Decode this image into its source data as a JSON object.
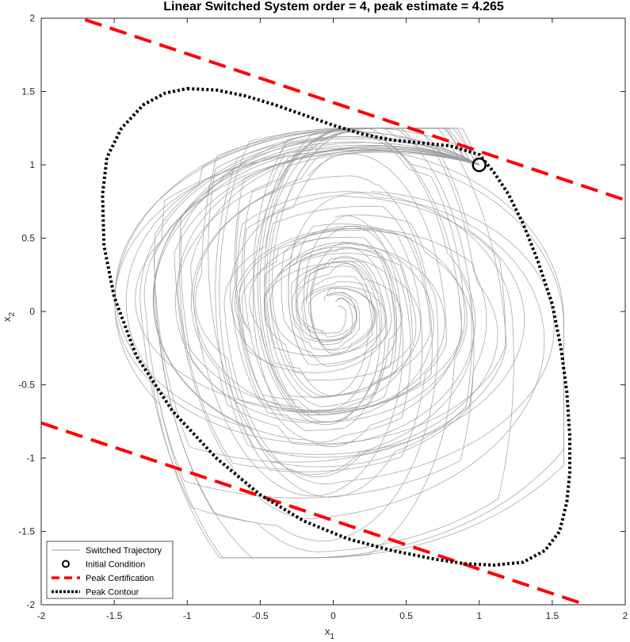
{
  "chart_data": {
    "type": "line",
    "title": "Linear Switched System order = 4, peak estimate = 4.265",
    "xlabel": "x",
    "xlabel_sub": "1",
    "ylabel": "x",
    "ylabel_sub": "2",
    "xlim": [
      -2,
      2
    ],
    "ylim": [
      -2,
      2
    ],
    "xticks": [
      -2,
      -1.5,
      -1,
      -0.5,
      0,
      0.5,
      1,
      1.5,
      2
    ],
    "xtick_labels": [
      "-2",
      "-1.5",
      "-1",
      "-0.5",
      "0",
      "0.5",
      "1",
      "1.5",
      "2"
    ],
    "yticks": [
      -2,
      -1.5,
      -1,
      -0.5,
      0,
      0.5,
      1,
      1.5,
      2
    ],
    "ytick_labels": [
      "-2",
      "-1.5",
      "-1",
      "-0.5",
      "0",
      "0.5",
      "1",
      "1.5",
      "2"
    ],
    "grid": false,
    "legend_position": "bottom-left",
    "colors": {
      "trajectory": "#9b9b9b",
      "initial": "#000000",
      "certification": "#ff0000",
      "contour": "#000000"
    },
    "initial_condition": {
      "x": 1,
      "y": 1
    },
    "certification_lines": [
      {
        "x": [
          -1.7,
          2.0
        ],
        "y": [
          1.99,
          0.76
        ]
      },
      {
        "x": [
          -2.0,
          1.7
        ],
        "y": [
          -0.76,
          -1.99
        ]
      }
    ],
    "peak_contour": {
      "x": [
        -1.0,
        -0.8,
        -0.6,
        -0.4,
        -0.2,
        0.0,
        0.2,
        0.4,
        0.6,
        0.8,
        1.0,
        1.1,
        1.2,
        1.3,
        1.4,
        1.5,
        1.56,
        1.6,
        1.62,
        1.62,
        1.6,
        1.55,
        1.45,
        1.3,
        1.1,
        0.9,
        0.7,
        0.4,
        0.1,
        -0.2,
        -0.5,
        -0.8,
        -1.1,
        -1.35,
        -1.5,
        -1.57,
        -1.58,
        -1.55,
        -1.45,
        -1.3,
        -1.15,
        -1.0
      ],
      "y": [
        1.52,
        1.51,
        1.47,
        1.41,
        1.34,
        1.27,
        1.21,
        1.17,
        1.15,
        1.13,
        1.07,
        0.95,
        0.8,
        0.6,
        0.35,
        0.05,
        -0.25,
        -0.55,
        -0.85,
        -1.1,
        -1.3,
        -1.5,
        -1.63,
        -1.71,
        -1.73,
        -1.72,
        -1.69,
        -1.63,
        -1.55,
        -1.43,
        -1.25,
        -1.0,
        -0.68,
        -0.3,
        0.1,
        0.45,
        0.8,
        1.05,
        1.25,
        1.41,
        1.49,
        1.52
      ]
    },
    "legend": [
      {
        "label": "Switched Trajectory",
        "style": "trajectory"
      },
      {
        "label": "Initial Condition",
        "style": "initial"
      },
      {
        "label": "Peak Certification",
        "style": "certification"
      },
      {
        "label": "Peak Contour",
        "style": "contour"
      }
    ]
  }
}
